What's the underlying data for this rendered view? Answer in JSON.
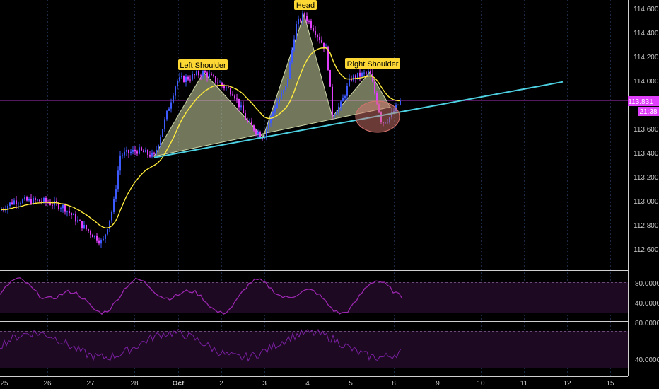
{
  "chart_data": {
    "type": "candlestick",
    "price_axis": {
      "ticks": [
        "114.600",
        "114.400",
        "114.200",
        "114.000",
        "113.600",
        "113.400",
        "113.200",
        "113.000",
        "112.800",
        "112.600"
      ],
      "ylim": [
        112.5,
        114.65
      ],
      "current_price": "113.831",
      "countdown": "21:38"
    },
    "date_axis": {
      "labels": [
        "25",
        "26",
        "27",
        "28",
        "Oct",
        "2",
        "3",
        "4",
        "5",
        "8",
        "9",
        "10",
        "11",
        "12",
        "15"
      ]
    },
    "annotations": [
      "Left Shoulder",
      "Head",
      "Right Shoulder"
    ],
    "pattern_points": [
      {
        "date": "28",
        "price": 113.37
      },
      {
        "date": "Oct",
        "price": 114.07
      },
      {
        "date": "3",
        "price": 113.53
      },
      {
        "date": "4",
        "price": 114.55
      },
      {
        "date": "5",
        "price": 113.7
      },
      {
        "date": "5",
        "price": 114.07
      },
      {
        "date": "5",
        "price": 113.78
      }
    ],
    "neckline": {
      "from": {
        "date": "28",
        "price": 113.36
      },
      "to": {
        "date": "12",
        "price": 113.99
      }
    },
    "oscillator_1": {
      "ticks": [
        "80.0000",
        "40.0000"
      ],
      "ylim": [
        0,
        100
      ]
    },
    "oscillator_2": {
      "ticks": [
        "80.0000",
        "40.0000"
      ],
      "ylim": [
        30,
        82
      ]
    },
    "colors": {
      "background": "#000000",
      "candles": "#e040fb",
      "candles_alt": "#3d5afe",
      "moving_average": "#ffeb3b",
      "neckline": "#4dd0e1",
      "pattern_fill": "#cfd8a8",
      "price_tag": "#e040fb",
      "oscillator_line": "#9c27b0"
    }
  }
}
